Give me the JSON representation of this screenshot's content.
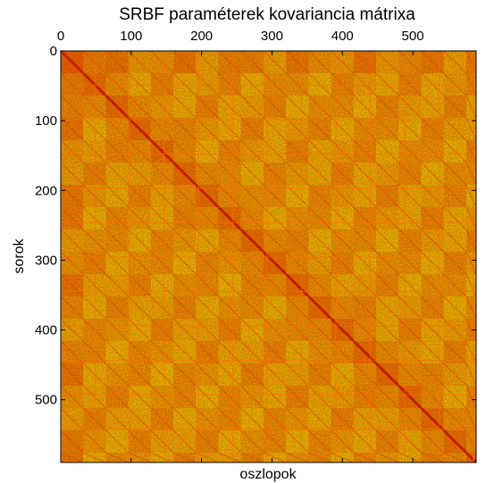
{
  "chart_data": {
    "type": "heatmap",
    "title": "SRBF paraméterek kovariancia mátrixa",
    "xlabel": "oszlopok",
    "ylabel": "sorok",
    "x_axis_position": "top",
    "xlim": [
      0,
      590
    ],
    "ylim": [
      0,
      590
    ],
    "x_ticks": [
      "0",
      "100",
      "200",
      "300",
      "400",
      "500"
    ],
    "y_ticks": [
      "0",
      "100",
      "200",
      "300",
      "400",
      "500"
    ],
    "matrix_size": 590,
    "block_size": 32,
    "grid": false,
    "colormap": {
      "name": "autumn",
      "low": "#ff0000",
      "high": "#ffff00"
    },
    "frame_color": "#000000"
  }
}
